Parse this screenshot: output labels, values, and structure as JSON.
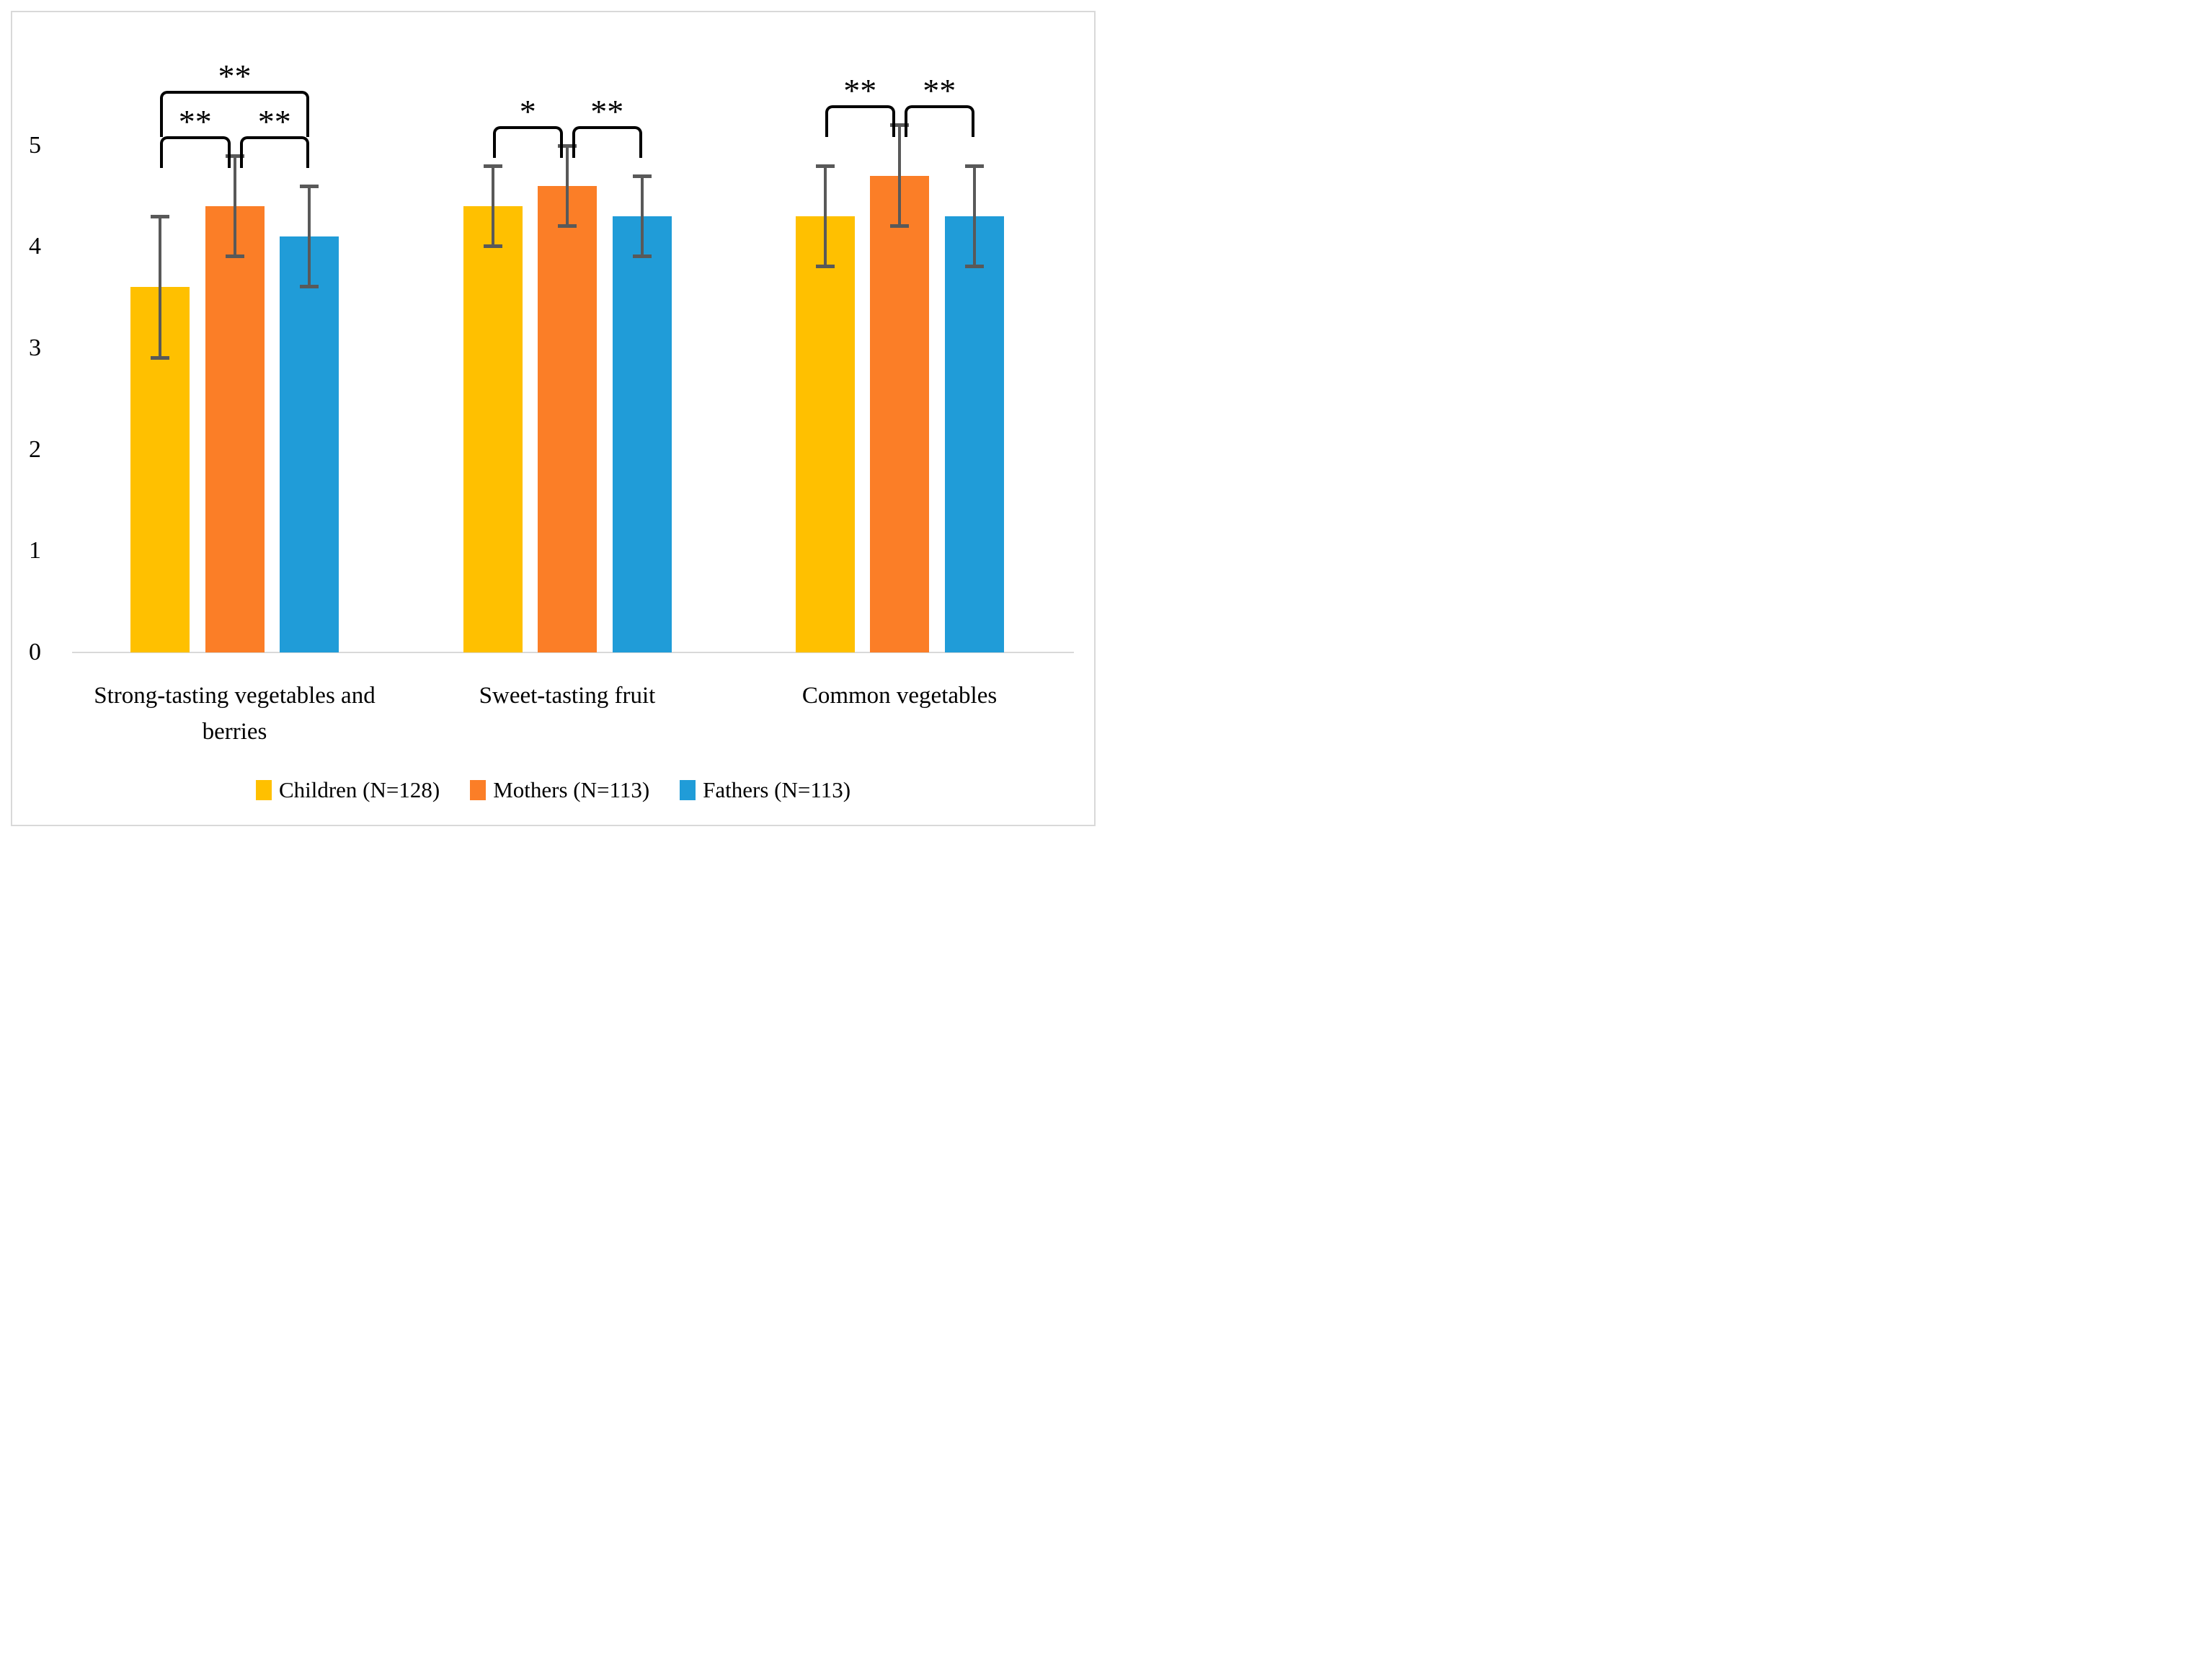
{
  "figure": {
    "background": "#FFFFFF",
    "border_color": "#D9D9D9"
  },
  "chart_data": {
    "type": "bar",
    "title": "",
    "xlabel": "",
    "ylabel": "",
    "categories": [
      "Strong-tasting vegetables and berries",
      "Sweet-tasting fruit",
      "Common vegetables"
    ],
    "series": [
      {
        "name": "Children (N=128)",
        "color": "#FFC000",
        "values": [
          3.6,
          4.4,
          4.3
        ],
        "errors": [
          0.7,
          0.4,
          0.5
        ]
      },
      {
        "name": "Mothers (N=113)",
        "color": "#FB7E27",
        "values": [
          4.4,
          4.6,
          4.7
        ],
        "errors": [
          0.5,
          0.4,
          0.5
        ]
      },
      {
        "name": "Fathers (N=113)",
        "color": "#209CD8",
        "values": [
          4.1,
          4.3,
          4.3
        ],
        "errors": [
          0.5,
          0.4,
          0.5
        ]
      }
    ],
    "ylim": [
      0,
      5
    ],
    "yticks": [
      0,
      1,
      2,
      3,
      4,
      5
    ],
    "grid": false,
    "legend_position": "bottom",
    "error_bar_color": "#595959",
    "axis_line_color": "#D9D9D9",
    "bracket_color": "#000000",
    "significance_brackets": [
      {
        "category": 0,
        "from_series": 0,
        "to_series": 2,
        "label": "**",
        "level": 2
      },
      {
        "category": 0,
        "from_series": 0,
        "to_series": 1,
        "label": "**",
        "level": 1
      },
      {
        "category": 0,
        "from_series": 1,
        "to_series": 2,
        "label": "**",
        "level": 1
      },
      {
        "category": 1,
        "from_series": 0,
        "to_series": 1,
        "label": "*",
        "level": 1
      },
      {
        "category": 1,
        "from_series": 1,
        "to_series": 2,
        "label": "**",
        "level": 1
      },
      {
        "category": 2,
        "from_series": 0,
        "to_series": 1,
        "label": "**",
        "level": 1
      },
      {
        "category": 2,
        "from_series": 1,
        "to_series": 2,
        "label": "**",
        "level": 1
      }
    ]
  }
}
